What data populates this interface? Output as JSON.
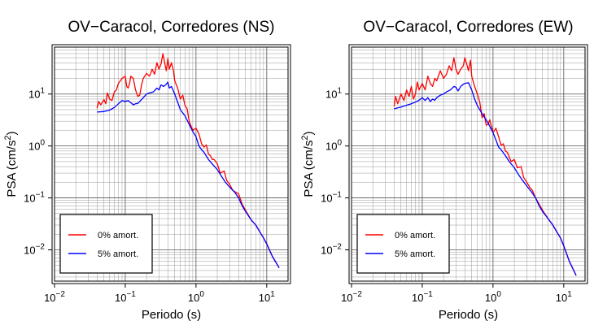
{
  "chart_data": [
    {
      "type": "line",
      "title": "OV−Caracol, Corredores (NS)",
      "xlabel": "Periodo (s)",
      "ylabel_base": "PSA (cm/s",
      "ylabel_sup": "2",
      "ylabel_close": ")",
      "xscale": "log",
      "yscale": "log",
      "xlim": [
        0.01,
        20
      ],
      "ylim": [
        0.0025,
        80
      ],
      "grid": true,
      "legend_position": "bottom-left",
      "x_ticks": [
        {
          "base": "10",
          "exp": "−2",
          "value": 0.01
        },
        {
          "base": "10",
          "exp": "−1",
          "value": 0.1
        },
        {
          "base": "10",
          "exp": "0",
          "value": 1
        },
        {
          "base": "10",
          "exp": "1",
          "value": 10
        }
      ],
      "y_ticks": [
        {
          "base": "10",
          "exp": "−2",
          "value": 0.01
        },
        {
          "base": "10",
          "exp": "−1",
          "value": 0.1
        },
        {
          "base": "10",
          "exp": "0",
          "value": 1
        },
        {
          "base": "10",
          "exp": "1",
          "value": 10
        }
      ],
      "series": [
        {
          "name": "0% amort.",
          "color": "#ff0000",
          "points": [
            [
              0.04,
              5.3
            ],
            [
              0.042,
              7.2
            ],
            [
              0.045,
              6.2
            ],
            [
              0.05,
              7.8
            ],
            [
              0.053,
              6.5
            ],
            [
              0.056,
              10.5
            ],
            [
              0.06,
              8
            ],
            [
              0.065,
              7.5
            ],
            [
              0.07,
              11
            ],
            [
              0.075,
              12
            ],
            [
              0.08,
              16
            ],
            [
              0.09,
              20
            ],
            [
              0.1,
              22
            ],
            [
              0.105,
              14
            ],
            [
              0.11,
              13
            ],
            [
              0.115,
              16
            ],
            [
              0.12,
              22
            ],
            [
              0.13,
              20
            ],
            [
              0.14,
              12
            ],
            [
              0.15,
              9
            ],
            [
              0.16,
              9.5
            ],
            [
              0.17,
              15
            ],
            [
              0.18,
              20
            ],
            [
              0.2,
              25
            ],
            [
              0.22,
              22
            ],
            [
              0.24,
              30
            ],
            [
              0.26,
              24
            ],
            [
              0.28,
              40
            ],
            [
              0.3,
              30
            ],
            [
              0.32,
              38
            ],
            [
              0.34,
              60
            ],
            [
              0.36,
              40
            ],
            [
              0.38,
              28
            ],
            [
              0.4,
              48
            ],
            [
              0.42,
              30
            ],
            [
              0.45,
              40
            ],
            [
              0.48,
              28
            ],
            [
              0.5,
              18
            ],
            [
              0.55,
              13
            ],
            [
              0.6,
              8
            ],
            [
              0.65,
              9.5
            ],
            [
              0.7,
              6
            ],
            [
              0.75,
              5.2
            ],
            [
              0.8,
              3
            ],
            [
              0.9,
              2
            ],
            [
              1.0,
              2.2
            ],
            [
              1.1,
              1.7
            ],
            [
              1.2,
              1.1
            ],
            [
              1.3,
              0.95
            ],
            [
              1.4,
              1.05
            ],
            [
              1.5,
              0.7
            ],
            [
              1.6,
              0.65
            ],
            [
              1.7,
              0.55
            ],
            [
              1.8,
              0.55
            ],
            [
              2.0,
              0.45
            ],
            [
              2.2,
              0.3
            ],
            [
              2.5,
              0.33
            ],
            [
              2.7,
              0.22
            ],
            [
              3.0,
              0.18
            ],
            [
              3.3,
              0.14
            ],
            [
              3.6,
              0.13
            ],
            [
              4.0,
              0.12
            ],
            [
              4.5,
              0.075
            ],
            [
              5.0,
              0.058
            ],
            [
              6.0,
              0.038
            ],
            [
              7.0,
              0.03
            ],
            [
              8.0,
              0.022
            ],
            [
              9.0,
              0.017
            ],
            [
              10.0,
              0.013
            ],
            [
              12.0,
              0.0075
            ],
            [
              15.0,
              0.0045
            ]
          ]
        },
        {
          "name": "5% amort.",
          "color": "#0000ff",
          "points": [
            [
              0.04,
              4.5
            ],
            [
              0.05,
              4.6
            ],
            [
              0.06,
              4.9
            ],
            [
              0.07,
              5.5
            ],
            [
              0.08,
              6.5
            ],
            [
              0.09,
              7.5
            ],
            [
              0.1,
              7.2
            ],
            [
              0.11,
              7.5
            ],
            [
              0.12,
              6.8
            ],
            [
              0.13,
              6.2
            ],
            [
              0.14,
              6.5
            ],
            [
              0.15,
              6.6
            ],
            [
              0.16,
              7.2
            ],
            [
              0.18,
              8.5
            ],
            [
              0.2,
              10
            ],
            [
              0.22,
              10.5
            ],
            [
              0.25,
              11
            ],
            [
              0.28,
              13
            ],
            [
              0.3,
              12
            ],
            [
              0.32,
              15
            ],
            [
              0.35,
              14
            ],
            [
              0.38,
              15.5
            ],
            [
              0.4,
              17
            ],
            [
              0.42,
              13
            ],
            [
              0.45,
              14
            ],
            [
              0.5,
              10
            ],
            [
              0.55,
              7
            ],
            [
              0.6,
              5
            ],
            [
              0.7,
              3.8
            ],
            [
              0.8,
              2.6
            ],
            [
              0.9,
              1.9
            ],
            [
              1.0,
              1.5
            ],
            [
              1.1,
              1.0
            ],
            [
              1.2,
              0.85
            ],
            [
              1.3,
              0.75
            ],
            [
              1.5,
              0.55
            ],
            [
              1.7,
              0.45
            ],
            [
              2.0,
              0.35
            ],
            [
              2.3,
              0.26
            ],
            [
              2.6,
              0.2
            ],
            [
              3.0,
              0.16
            ],
            [
              3.5,
              0.13
            ],
            [
              4.0,
              0.1
            ],
            [
              4.5,
              0.07
            ],
            [
              5.0,
              0.055
            ],
            [
              6.0,
              0.038
            ],
            [
              7.0,
              0.03
            ],
            [
              8.0,
              0.022
            ],
            [
              9.0,
              0.017
            ],
            [
              10.0,
              0.013
            ],
            [
              12.0,
              0.0075
            ],
            [
              15.0,
              0.0045
            ]
          ]
        }
      ]
    },
    {
      "type": "line",
      "title": "OV−Caracol, Corredores (EW)",
      "xlabel": "Periodo (s)",
      "ylabel_base": "PSA (cm/s",
      "ylabel_sup": "2",
      "ylabel_close": ")",
      "xscale": "log",
      "yscale": "log",
      "xlim": [
        0.01,
        20
      ],
      "ylim": [
        0.0025,
        80
      ],
      "grid": true,
      "legend_position": "bottom-left",
      "x_ticks": [
        {
          "base": "10",
          "exp": "−2",
          "value": 0.01
        },
        {
          "base": "10",
          "exp": "−1",
          "value": 0.1
        },
        {
          "base": "10",
          "exp": "0",
          "value": 1
        },
        {
          "base": "10",
          "exp": "1",
          "value": 10
        }
      ],
      "y_ticks": [
        {
          "base": "10",
          "exp": "−2",
          "value": 0.01
        },
        {
          "base": "10",
          "exp": "−1",
          "value": 0.1
        },
        {
          "base": "10",
          "exp": "0",
          "value": 1
        },
        {
          "base": "10",
          "exp": "1",
          "value": 10
        }
      ],
      "series": [
        {
          "name": "0% amort.",
          "color": "#ff0000",
          "points": [
            [
              0.04,
              5.8
            ],
            [
              0.042,
              9
            ],
            [
              0.045,
              6.5
            ],
            [
              0.05,
              10
            ],
            [
              0.055,
              7.5
            ],
            [
              0.06,
              12
            ],
            [
              0.065,
              9
            ],
            [
              0.07,
              14
            ],
            [
              0.075,
              8
            ],
            [
              0.08,
              10
            ],
            [
              0.085,
              17
            ],
            [
              0.09,
              12
            ],
            [
              0.1,
              16
            ],
            [
              0.11,
              12
            ],
            [
              0.12,
              22
            ],
            [
              0.13,
              16
            ],
            [
              0.14,
              14
            ],
            [
              0.15,
              20
            ],
            [
              0.16,
              18
            ],
            [
              0.18,
              28
            ],
            [
              0.2,
              20
            ],
            [
              0.22,
              24
            ],
            [
              0.24,
              35
            ],
            [
              0.26,
              28
            ],
            [
              0.28,
              50
            ],
            [
              0.3,
              30
            ],
            [
              0.32,
              24
            ],
            [
              0.35,
              30
            ],
            [
              0.38,
              35
            ],
            [
              0.4,
              50
            ],
            [
              0.42,
              40
            ],
            [
              0.45,
              28
            ],
            [
              0.48,
              45
            ],
            [
              0.5,
              22
            ],
            [
              0.55,
              14
            ],
            [
              0.6,
              10
            ],
            [
              0.65,
              7
            ],
            [
              0.7,
              3.5
            ],
            [
              0.75,
              4.2
            ],
            [
              0.8,
              2.5
            ],
            [
              0.85,
              2.6
            ],
            [
              0.9,
              3.2
            ],
            [
              1.0,
              1.8
            ],
            [
              1.1,
              2.2
            ],
            [
              1.2,
              1.5
            ],
            [
              1.3,
              1.05
            ],
            [
              1.4,
              1.1
            ],
            [
              1.5,
              0.8
            ],
            [
              1.6,
              0.75
            ],
            [
              1.8,
              0.5
            ],
            [
              2.0,
              0.55
            ],
            [
              2.2,
              0.38
            ],
            [
              2.5,
              0.4
            ],
            [
              2.7,
              0.25
            ],
            [
              3.0,
              0.2
            ],
            [
              3.3,
              0.16
            ],
            [
              3.6,
              0.14
            ],
            [
              4.0,
              0.1
            ],
            [
              4.5,
              0.075
            ],
            [
              5.0,
              0.058
            ],
            [
              6.0,
              0.04
            ],
            [
              7.0,
              0.03
            ],
            [
              8.0,
              0.022
            ],
            [
              9.0,
              0.017
            ],
            [
              10.0,
              0.012
            ],
            [
              12.0,
              0.006
            ],
            [
              15.0,
              0.0032
            ]
          ]
        },
        {
          "name": "5% amort.",
          "color": "#0000ff",
          "points": [
            [
              0.04,
              5.2
            ],
            [
              0.05,
              5.6
            ],
            [
              0.06,
              6.1
            ],
            [
              0.07,
              6.5
            ],
            [
              0.08,
              7
            ],
            [
              0.09,
              7.6
            ],
            [
              0.1,
              8.5
            ],
            [
              0.11,
              7.5
            ],
            [
              0.12,
              8.5
            ],
            [
              0.13,
              7.2
            ],
            [
              0.14,
              8
            ],
            [
              0.15,
              7.6
            ],
            [
              0.16,
              8.5
            ],
            [
              0.18,
              9.5
            ],
            [
              0.2,
              10
            ],
            [
              0.22,
              11
            ],
            [
              0.25,
              12
            ],
            [
              0.28,
              14
            ],
            [
              0.3,
              13.5
            ],
            [
              0.32,
              11.5
            ],
            [
              0.35,
              14
            ],
            [
              0.38,
              15.5
            ],
            [
              0.4,
              16
            ],
            [
              0.45,
              16.5
            ],
            [
              0.5,
              12
            ],
            [
              0.55,
              8
            ],
            [
              0.6,
              6
            ],
            [
              0.7,
              4.2
            ],
            [
              0.8,
              3.2
            ],
            [
              0.9,
              2.4
            ],
            [
              1.0,
              1.8
            ],
            [
              1.1,
              1.3
            ],
            [
              1.2,
              0.95
            ],
            [
              1.3,
              0.85
            ],
            [
              1.5,
              0.65
            ],
            [
              1.7,
              0.5
            ],
            [
              2.0,
              0.38
            ],
            [
              2.3,
              0.28
            ],
            [
              2.6,
              0.22
            ],
            [
              3.0,
              0.17
            ],
            [
              3.5,
              0.13
            ],
            [
              4.0,
              0.1
            ],
            [
              4.5,
              0.07
            ],
            [
              5.0,
              0.055
            ],
            [
              6.0,
              0.04
            ],
            [
              7.0,
              0.03
            ],
            [
              8.0,
              0.022
            ],
            [
              9.0,
              0.017
            ],
            [
              10.0,
              0.012
            ],
            [
              12.0,
              0.006
            ],
            [
              15.0,
              0.0032
            ]
          ]
        }
      ]
    }
  ]
}
